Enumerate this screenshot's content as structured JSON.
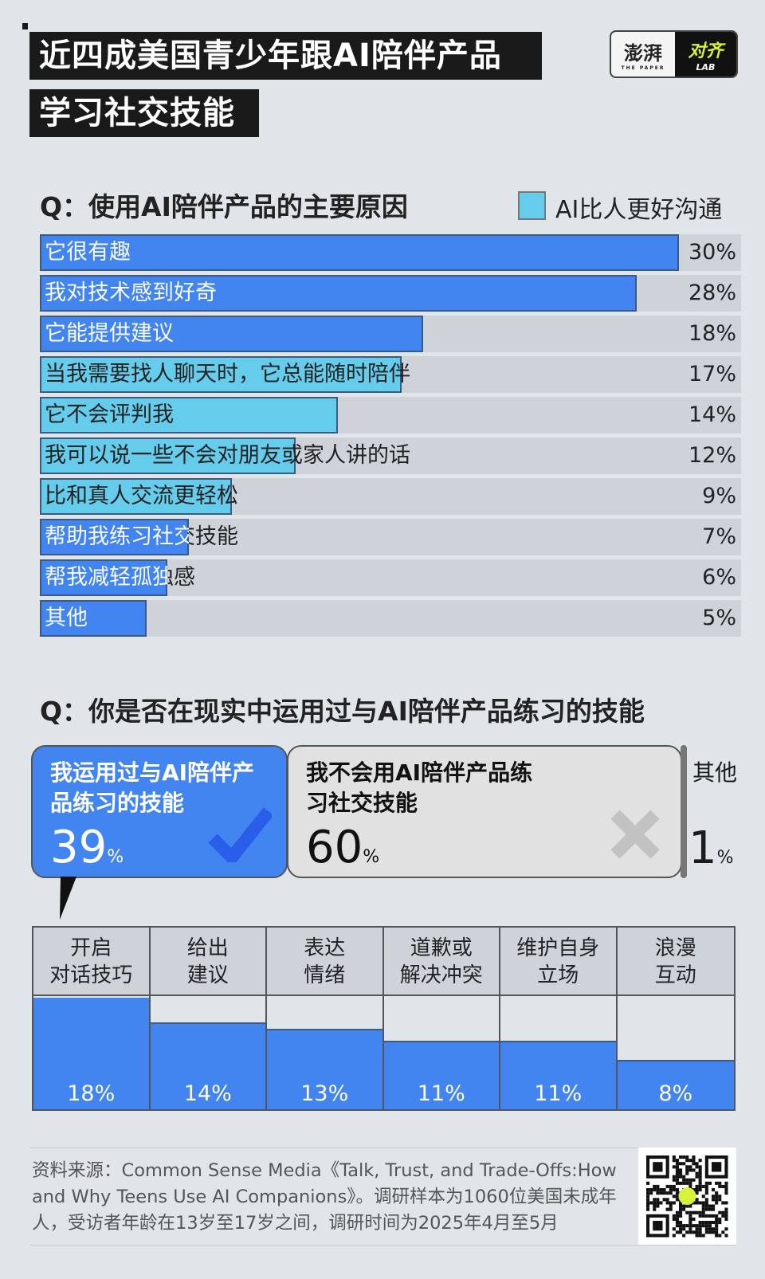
{
  "title": {
    "line1": "近四成美国青少年跟AI陪伴产品",
    "line2": "学习社交技能"
  },
  "logo": {
    "left_text": "澎湃",
    "left_sub": "THE PAPER",
    "right_text": "对齐",
    "right_sub": "LAB"
  },
  "colors": {
    "background": "#dfe5e8",
    "blue": "#4285f0",
    "light_blue": "#66ccec",
    "track": "#cdd3d8"
  },
  "chart_data": [
    {
      "type": "bar",
      "orientation": "horizontal",
      "title": "Q：使用AI陪伴产品的主要原因",
      "legend": {
        "label": "AI比人更好沟通",
        "color": "#66ccec",
        "placement": "top-right"
      },
      "categories": [
        "它很有趣",
        "我对技术感到好奇",
        "它能提供建议",
        "当我需要找人聊天时，它总能随时陪伴",
        "它不会评判我",
        "我可以说一些不会对朋友或家人讲的话",
        "比和真人交流更轻松",
        "帮助我练习社交技能",
        "帮我减轻孤独感",
        "其他"
      ],
      "values": [
        30,
        28,
        18,
        17,
        14,
        12,
        9,
        7,
        6,
        5
      ],
      "labels": [
        "30%",
        "28%",
        "18%",
        "17%",
        "14%",
        "12%",
        "9%",
        "7%",
        "6%",
        "5%"
      ],
      "highlight": [
        false,
        false,
        false,
        true,
        true,
        true,
        true,
        false,
        false,
        false
      ],
      "xlim": [
        0,
        33
      ]
    },
    {
      "type": "bar",
      "title": "Q：你是否在现实中运用过与AI陪伴产品练习的技能",
      "answers": [
        {
          "label": "我运用过与AI陪伴产品练习的技能",
          "value": 39,
          "icon": "check-icon"
        },
        {
          "label": "我不会用AI陪伴产品练习社交技能",
          "value": 60,
          "icon": "cross-icon"
        },
        {
          "label": "其他",
          "value": 1
        }
      ],
      "percent_sign": "%",
      "breakdown": {
        "categories": [
          "开启\n对话技巧",
          "给出\n建议",
          "表达\n情绪",
          "道歉或\n解决冲突",
          "维护自身\n立场",
          "浪漫\n互动"
        ],
        "values": [
          18,
          14,
          13,
          11,
          11,
          8
        ],
        "labels": [
          "18%",
          "14%",
          "13%",
          "11%",
          "11%",
          "8%"
        ],
        "ylim": [
          0,
          18
        ]
      }
    }
  ],
  "footer": {
    "source": "资料来源：Common Sense Media《Talk, Trust, and Trade-Offs:How and Why Teens Use AI Companions》。调研样本为1060位美国未成年人，受访者年龄在13岁至17岁之间，调研时间为2025年4月至5月"
  }
}
